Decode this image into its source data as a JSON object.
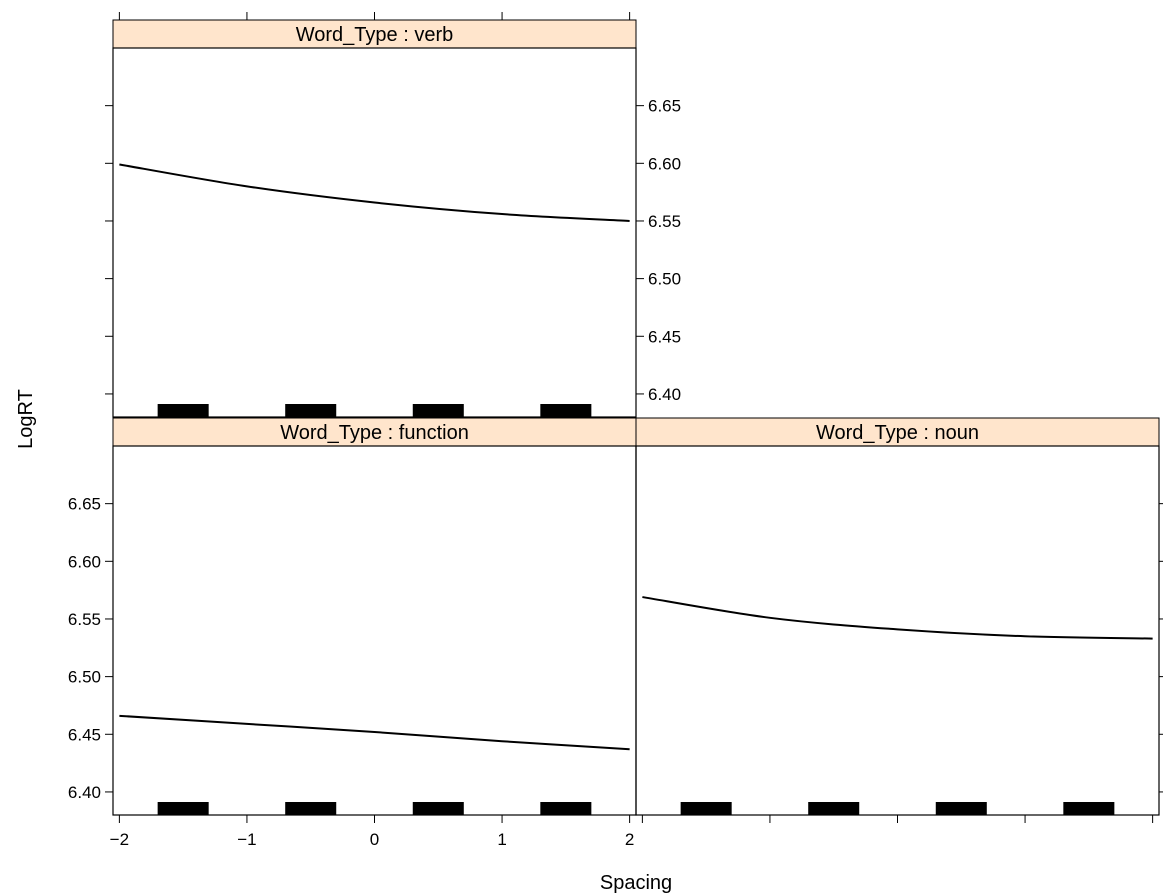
{
  "chart_data": {
    "type": "line",
    "layout": "trellis 2x2",
    "xlabel": "Spacing",
    "ylabel": "LogRT",
    "xlim": [
      -2.05,
      2.05
    ],
    "ylim": [
      6.38,
      6.7
    ],
    "x_ticks": [
      -2,
      -1,
      0,
      1,
      2
    ],
    "x_tick_labels": [
      "−2",
      "−1",
      "0",
      "1",
      "2"
    ],
    "y_ticks": [
      6.4,
      6.45,
      6.5,
      6.55,
      6.6,
      6.65
    ],
    "y_tick_labels": [
      "6.40",
      "6.45",
      "6.50",
      "6.55",
      "6.60",
      "6.65"
    ],
    "panels": [
      {
        "strip": "Word_Type : verb",
        "x": [
          -2,
          -1,
          0,
          1,
          2
        ],
        "y": [
          6.599,
          6.58,
          6.566,
          6.556,
          6.55
        ],
        "rug": [
          [
            -1.7,
            -1.3
          ],
          [
            -0.7,
            -0.3
          ],
          [
            0.3,
            0.7
          ],
          [
            1.3,
            1.7
          ]
        ]
      },
      {
        "strip": "Word_Type : function",
        "x": [
          -2,
          -1,
          0,
          1,
          2
        ],
        "y": [
          6.466,
          6.459,
          6.452,
          6.444,
          6.437
        ],
        "rug": [
          [
            -1.7,
            -1.3
          ],
          [
            -0.7,
            -0.3
          ],
          [
            0.3,
            0.7
          ],
          [
            1.3,
            1.7
          ]
        ]
      },
      {
        "strip": "Word_Type : noun",
        "x": [
          -2,
          -1,
          0,
          1,
          2
        ],
        "y": [
          6.569,
          6.551,
          6.541,
          6.535,
          6.533
        ],
        "rug": [
          [
            -1.7,
            -1.3
          ],
          [
            -0.7,
            -0.3
          ],
          [
            0.3,
            0.7
          ],
          [
            1.3,
            1.7
          ]
        ]
      }
    ]
  }
}
